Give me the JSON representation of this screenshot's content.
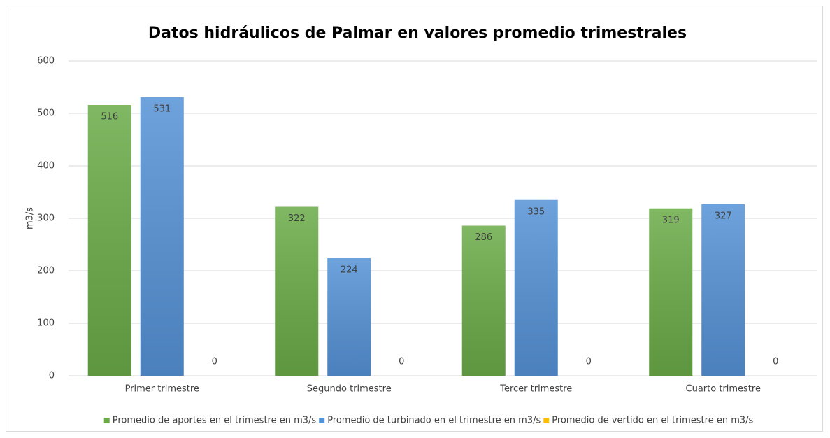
{
  "chart_data": {
    "type": "bar",
    "title": "Datos hidráulicos de Palmar en valores promedio trimestrales",
    "y_label": "m3/s",
    "categories": [
      "Primer trimestre",
      "Segundo trimestre",
      "Tercer trimestre",
      "Cuarto trimestre"
    ],
    "series": [
      {
        "name": "Promedio de aportes en el trimestre en m3/s",
        "color": "#6aab47",
        "values": [
          516,
          322,
          286,
          319
        ]
      },
      {
        "name": "Promedio de turbinado en el trimestre en m3/s",
        "color": "#5592d6",
        "values": [
          531,
          224,
          335,
          327
        ]
      },
      {
        "name": "Promedio de vertido en el trimestre en m3/s",
        "color": "#ffc000",
        "values": [
          0,
          0,
          0,
          0
        ]
      }
    ],
    "ylim": [
      0,
      600
    ],
    "yticks": [
      0,
      100,
      200,
      300,
      400,
      500,
      600
    ],
    "grid": true,
    "legend": "bottom"
  }
}
